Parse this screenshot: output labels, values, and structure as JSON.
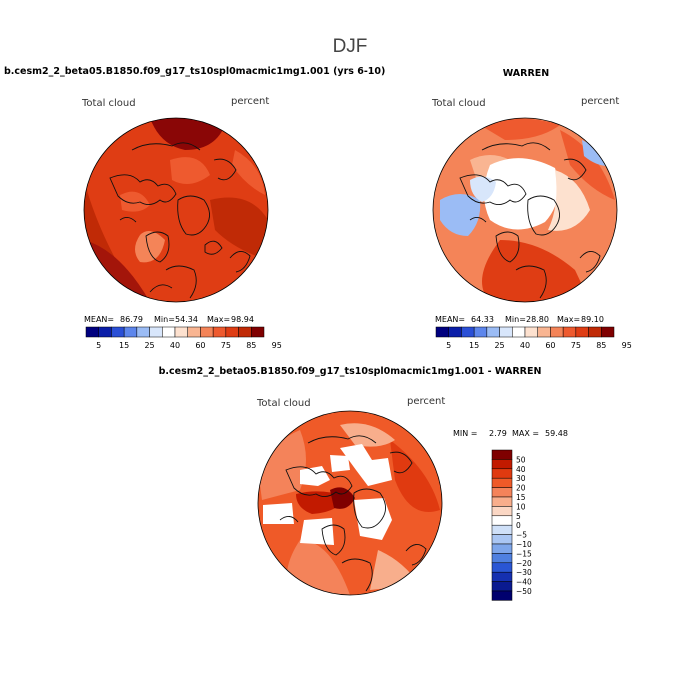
{
  "season_title": "DJF",
  "panels": [
    {
      "title": "b.cesm2_2_beta05.B1850.f09_g17_ts10spl0macmic1mg1.001 (yrs 6-10)",
      "variable": "Total cloud",
      "units": "percent",
      "stats_labels": {
        "mean": "MEAN=",
        "min": "Min=",
        "max": "Max="
      },
      "stats": {
        "mean": "86.79",
        "min": "54.34",
        "max": "98.94"
      },
      "colorbar_ticks": [
        "5",
        "15",
        "25",
        "40",
        "60",
        "75",
        "85",
        "95"
      ]
    },
    {
      "title": "WARREN",
      "variable": "Total cloud",
      "units": "percent",
      "stats_labels": {
        "mean": "MEAN=",
        "min": "Min=",
        "max": "Max="
      },
      "stats": {
        "mean": "64.33",
        "min": "28.80",
        "max": "89.10"
      },
      "colorbar_ticks": [
        "5",
        "15",
        "25",
        "40",
        "60",
        "75",
        "85",
        "95"
      ]
    },
    {
      "title": "b.cesm2_2_beta05.B1850.f09_g17_ts10spl0macmic1mg1.001 - WARREN",
      "variable": "Total cloud",
      "units": "percent",
      "stats_labels": {
        "min": "MIN =",
        "max": "MAX ="
      },
      "stats": {
        "min": "2.79",
        "max": "59.48"
      },
      "colorbar_ticks": [
        "50",
        "40",
        "30",
        "20",
        "15",
        "10",
        "5",
        "0",
        "−5",
        "−10",
        "−15",
        "−20",
        "−30",
        "−40",
        "−50"
      ]
    }
  ],
  "chart_data": [
    {
      "type": "heatmap",
      "projection": "north-polar-stereographic",
      "title": "b.cesm2_2_beta05.B1850.f09_g17_ts10spl0macmic1mg1.001 (yrs 6-10)",
      "field": "Total cloud",
      "units": "percent",
      "mean": 86.79,
      "min": 54.34,
      "max": 98.94,
      "levels": [
        5,
        15,
        25,
        40,
        60,
        75,
        85,
        95
      ],
      "colors": [
        "#00007f",
        "#0b1ea8",
        "#2a4fd6",
        "#5d86ec",
        "#9bbcf5",
        "#d8e6fb",
        "#ffffff",
        "#fde1cf",
        "#f9b592",
        "#f48458",
        "#ee5a2f",
        "#df3d14",
        "#c02a06",
        "#7f0000"
      ]
    },
    {
      "type": "heatmap",
      "projection": "north-polar-stereographic",
      "title": "WARREN",
      "field": "Total cloud",
      "units": "percent",
      "mean": 64.33,
      "min": 28.8,
      "max": 89.1,
      "levels": [
        5,
        15,
        25,
        40,
        60,
        75,
        85,
        95
      ],
      "colors": [
        "#00007f",
        "#0b1ea8",
        "#2a4fd6",
        "#5d86ec",
        "#9bbcf5",
        "#d8e6fb",
        "#ffffff",
        "#fde1cf",
        "#f9b592",
        "#f48458",
        "#ee5a2f",
        "#df3d14",
        "#c02a06",
        "#7f0000"
      ]
    },
    {
      "type": "heatmap",
      "projection": "north-polar-stereographic",
      "title": "b.cesm2_2_beta05.B1850.f09_g17_ts10spl0macmic1mg1.001 - WARREN",
      "field": "Total cloud",
      "units": "percent",
      "min": 2.79,
      "max": 59.48,
      "levels": [
        50,
        40,
        30,
        20,
        15,
        10,
        5,
        0,
        -5,
        -10,
        -15,
        -20,
        -30,
        -40,
        -50
      ],
      "colors": [
        "#7f0000",
        "#c21a00",
        "#e03a10",
        "#ef5a28",
        "#f4835a",
        "#f8ae8c",
        "#fbd7c4",
        "#ffffff",
        "#cfe0f8",
        "#aac6f3",
        "#7ea6ea",
        "#4f80e0",
        "#2a56d4",
        "#1530b0",
        "#0a1a90",
        "#00006e"
      ]
    }
  ]
}
